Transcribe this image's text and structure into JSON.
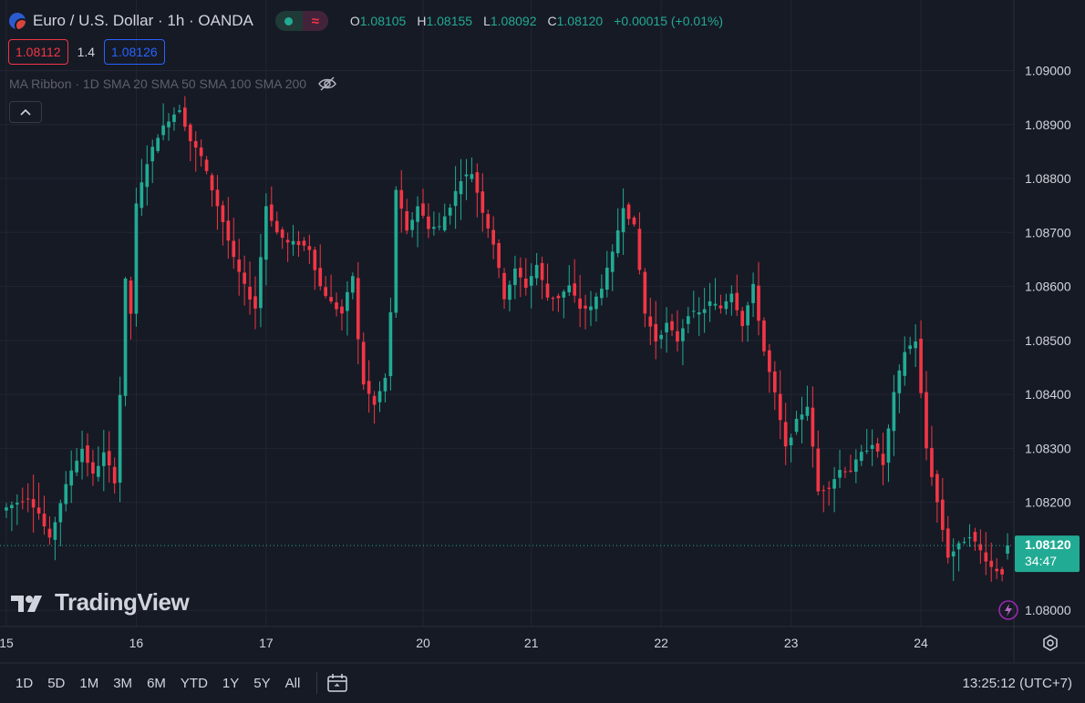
{
  "header": {
    "title": "Euro / U.S. Dollar · 1h · OANDA",
    "status_wave": "≈",
    "ohlc": {
      "o_label": "O",
      "o": "1.08105",
      "h_label": "H",
      "h": "1.08155",
      "l_label": "L",
      "l": "1.08092",
      "c_label": "C",
      "c": "1.08120",
      "change": "+0.00015 (+0.01%)"
    }
  },
  "trade": {
    "sell": "1.08112",
    "spread": "1.4",
    "buy": "1.08126"
  },
  "indicator": {
    "label": "MA Ribbon · 1D SMA 20 SMA 50 SMA 100 SMA 200"
  },
  "brand": {
    "logo_text": "TradingView"
  },
  "bottom": {
    "ranges": [
      "1D",
      "5D",
      "1M",
      "3M",
      "6M",
      "YTD",
      "1Y",
      "5Y",
      "All"
    ],
    "clock": "13:25:12 (UTC+7)"
  },
  "colors": {
    "up": "#22ab94",
    "down": "#f23645",
    "background": "#161a25",
    "grid": "#232632"
  },
  "chart_data": {
    "type": "candlestick",
    "symbol": "EURUSD",
    "interval": "1h",
    "yticks": [
      "1.09000",
      "1.08900",
      "1.08800",
      "1.08700",
      "1.08600",
      "1.08500",
      "1.08400",
      "1.08300",
      "1.08200",
      "1.08000"
    ],
    "y_values": [
      1.09,
      1.089,
      1.088,
      1.087,
      1.086,
      1.085,
      1.084,
      1.083,
      1.082,
      1.08
    ],
    "ylim": [
      1.0797,
      1.0907
    ],
    "xticks": [
      "15",
      "16",
      "17",
      "20",
      "21",
      "22",
      "23",
      "24"
    ],
    "xtick_bars": [
      0,
      24,
      48,
      77,
      97,
      121,
      145,
      169
    ],
    "last_price": "1.08120",
    "last_value": 1.0812,
    "countdown": "34:47",
    "anchors": [
      [
        0,
        1.0819
      ],
      [
        2,
        1.082
      ],
      [
        4,
        1.0821
      ],
      [
        6,
        1.0818
      ],
      [
        8,
        1.0813
      ],
      [
        10,
        1.082
      ],
      [
        12,
        1.0826
      ],
      [
        14,
        1.083
      ],
      [
        16,
        1.0825
      ],
      [
        18,
        1.0829
      ],
      [
        20,
        1.0824
      ],
      [
        21,
        1.084
      ],
      [
        22,
        1.0861
      ],
      [
        23,
        1.0855
      ],
      [
        24,
        1.0875
      ],
      [
        26,
        1.0883
      ],
      [
        28,
        1.0888
      ],
      [
        30,
        1.0891
      ],
      [
        32,
        1.0893
      ],
      [
        34,
        1.0887
      ],
      [
        36,
        1.0884
      ],
      [
        38,
        1.0878
      ],
      [
        40,
        1.0872
      ],
      [
        42,
        1.0865
      ],
      [
        44,
        1.086
      ],
      [
        46,
        1.0856
      ],
      [
        48,
        1.0875
      ],
      [
        50,
        1.087
      ],
      [
        52,
        1.0868
      ],
      [
        54,
        1.0868
      ],
      [
        56,
        1.0867
      ],
      [
        58,
        1.086
      ],
      [
        60,
        1.0857
      ],
      [
        62,
        1.0855
      ],
      [
        64,
        1.0862
      ],
      [
        65,
        1.085
      ],
      [
        66,
        1.0842
      ],
      [
        68,
        1.0838
      ],
      [
        70,
        1.0843
      ],
      [
        71,
        1.0855
      ],
      [
        72,
        1.0878
      ],
      [
        74,
        1.087
      ],
      [
        76,
        1.0875
      ],
      [
        78,
        1.0871
      ],
      [
        80,
        1.0871
      ],
      [
        82,
        1.0875
      ],
      [
        84,
        1.088
      ],
      [
        86,
        1.0881
      ],
      [
        88,
        1.0874
      ],
      [
        90,
        1.0868
      ],
      [
        92,
        1.0858
      ],
      [
        94,
        1.0863
      ],
      [
        96,
        1.086
      ],
      [
        98,
        1.0864
      ],
      [
        100,
        1.0858
      ],
      [
        102,
        1.0858
      ],
      [
        104,
        1.086
      ],
      [
        106,
        1.0856
      ],
      [
        108,
        1.0856
      ],
      [
        110,
        1.086
      ],
      [
        112,
        1.0866
      ],
      [
        114,
        1.0875
      ],
      [
        116,
        1.0871
      ],
      [
        118,
        1.0855
      ],
      [
        120,
        1.085
      ],
      [
        122,
        1.0853
      ],
      [
        124,
        1.085
      ],
      [
        126,
        1.0855
      ],
      [
        128,
        1.0855
      ],
      [
        130,
        1.0857
      ],
      [
        132,
        1.0856
      ],
      [
        134,
        1.0859
      ],
      [
        136,
        1.0853
      ],
      [
        138,
        1.086
      ],
      [
        140,
        1.0848
      ],
      [
        142,
        1.084
      ],
      [
        144,
        1.083
      ],
      [
        146,
        1.0835
      ],
      [
        148,
        1.0838
      ],
      [
        150,
        1.0822
      ],
      [
        152,
        1.0823
      ],
      [
        154,
        1.0826
      ],
      [
        156,
        1.0826
      ],
      [
        158,
        1.0829
      ],
      [
        160,
        1.0831
      ],
      [
        162,
        1.0827
      ],
      [
        164,
        1.084
      ],
      [
        166,
        1.0848
      ],
      [
        168,
        1.085
      ],
      [
        170,
        1.083
      ],
      [
        172,
        1.082
      ],
      [
        174,
        1.081
      ],
      [
        176,
        1.0812
      ],
      [
        178,
        1.0814
      ],
      [
        180,
        1.0811
      ],
      [
        182,
        1.0808
      ],
      [
        184,
        1.0807
      ],
      [
        185,
        1.0812
      ]
    ]
  }
}
